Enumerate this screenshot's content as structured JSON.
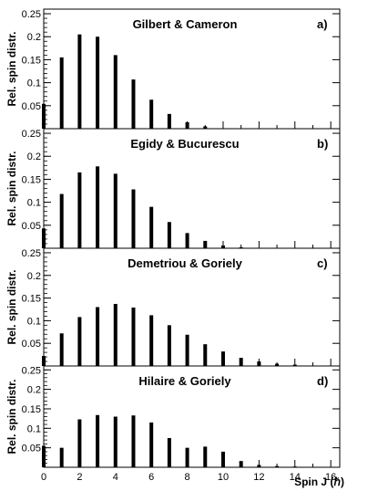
{
  "figure": {
    "xlabel": "Spin J (ℏ)",
    "ylabel": "Rel. spin distr."
  },
  "chart_data": [
    {
      "type": "bar",
      "title": "Gilbert & Cameron",
      "tag": "a)",
      "x": [
        0,
        1,
        2,
        3,
        4,
        5,
        6,
        7,
        8,
        9,
        10,
        11,
        12,
        13,
        14,
        15,
        16
      ],
      "values": [
        0.054,
        0.155,
        0.205,
        0.2,
        0.16,
        0.107,
        0.063,
        0.032,
        0.014,
        0.005,
        0.001,
        0.0,
        0.0,
        0.0,
        0.0,
        0.0,
        0.0
      ],
      "xlim": [
        0,
        16.5
      ],
      "ylim": [
        0,
        0.26
      ],
      "yticks": [
        0.05,
        0.1,
        0.15,
        0.2,
        0.25
      ],
      "yticklabels": [
        "0.05",
        "0.1",
        "0.15",
        "0.2",
        "0.25"
      ],
      "ylabel": "Rel. spin distr."
    },
    {
      "type": "bar",
      "title": "Egidy & Bucurescu",
      "tag": "b)",
      "x": [
        0,
        1,
        2,
        3,
        4,
        5,
        6,
        7,
        8,
        9,
        10,
        11,
        12,
        13,
        14,
        15,
        16
      ],
      "values": [
        0.043,
        0.118,
        0.165,
        0.178,
        0.162,
        0.128,
        0.09,
        0.057,
        0.033,
        0.016,
        0.006,
        0.002,
        0.0,
        0.0,
        0.0,
        0.0,
        0.0
      ],
      "xlim": [
        0,
        16.5
      ],
      "ylim": [
        0,
        0.26
      ],
      "yticks": [
        0.05,
        0.1,
        0.15,
        0.2,
        0.25
      ],
      "yticklabels": [
        "0.05",
        "0.1",
        "0.15",
        "0.2",
        "0.25"
      ],
      "ylabel": "Rel. spin distr."
    },
    {
      "type": "bar",
      "title": "Demetriou & Goriely",
      "tag": "c)",
      "x": [
        0,
        1,
        2,
        3,
        4,
        5,
        6,
        7,
        8,
        9,
        10,
        11,
        12,
        13,
        14,
        15,
        16
      ],
      "values": [
        0.022,
        0.072,
        0.108,
        0.13,
        0.137,
        0.129,
        0.112,
        0.09,
        0.069,
        0.048,
        0.032,
        0.018,
        0.01,
        0.005,
        0.003,
        0.001,
        0.0
      ],
      "xlim": [
        0,
        16.5
      ],
      "ylim": [
        0,
        0.26
      ],
      "yticks": [
        0.05,
        0.1,
        0.15,
        0.2,
        0.25
      ],
      "yticklabels": [
        "0.05",
        "0.1",
        "0.15",
        "0.2",
        "0.25"
      ],
      "ylabel": "Rel. spin distr."
    },
    {
      "type": "bar",
      "title": "Hilaire & Goriely",
      "tag": "d)",
      "x": [
        0,
        1,
        2,
        3,
        4,
        5,
        6,
        7,
        8,
        9,
        10,
        11,
        12,
        13,
        14,
        15,
        16
      ],
      "values": [
        0.055,
        0.05,
        0.123,
        0.134,
        0.13,
        0.133,
        0.115,
        0.075,
        0.05,
        0.053,
        0.04,
        0.016,
        0.006,
        0.003,
        0.002,
        0.001,
        0.0
      ],
      "xlim": [
        0,
        16.5
      ],
      "ylim": [
        0,
        0.26
      ],
      "yticks": [
        0.05,
        0.1,
        0.15,
        0.2,
        0.25
      ],
      "yticklabels": [
        "0.05",
        "0.1",
        "0.15",
        "0.2",
        "0.25"
      ],
      "xticks": [
        0,
        2,
        4,
        6,
        8,
        10,
        12,
        14,
        16
      ],
      "xticklabels": [
        "0",
        "2",
        "4",
        "6",
        "8",
        "10",
        "12",
        "14",
        "16"
      ],
      "xlabel": "Spin J (ℏ)",
      "ylabel": "Rel. spin distr."
    }
  ]
}
